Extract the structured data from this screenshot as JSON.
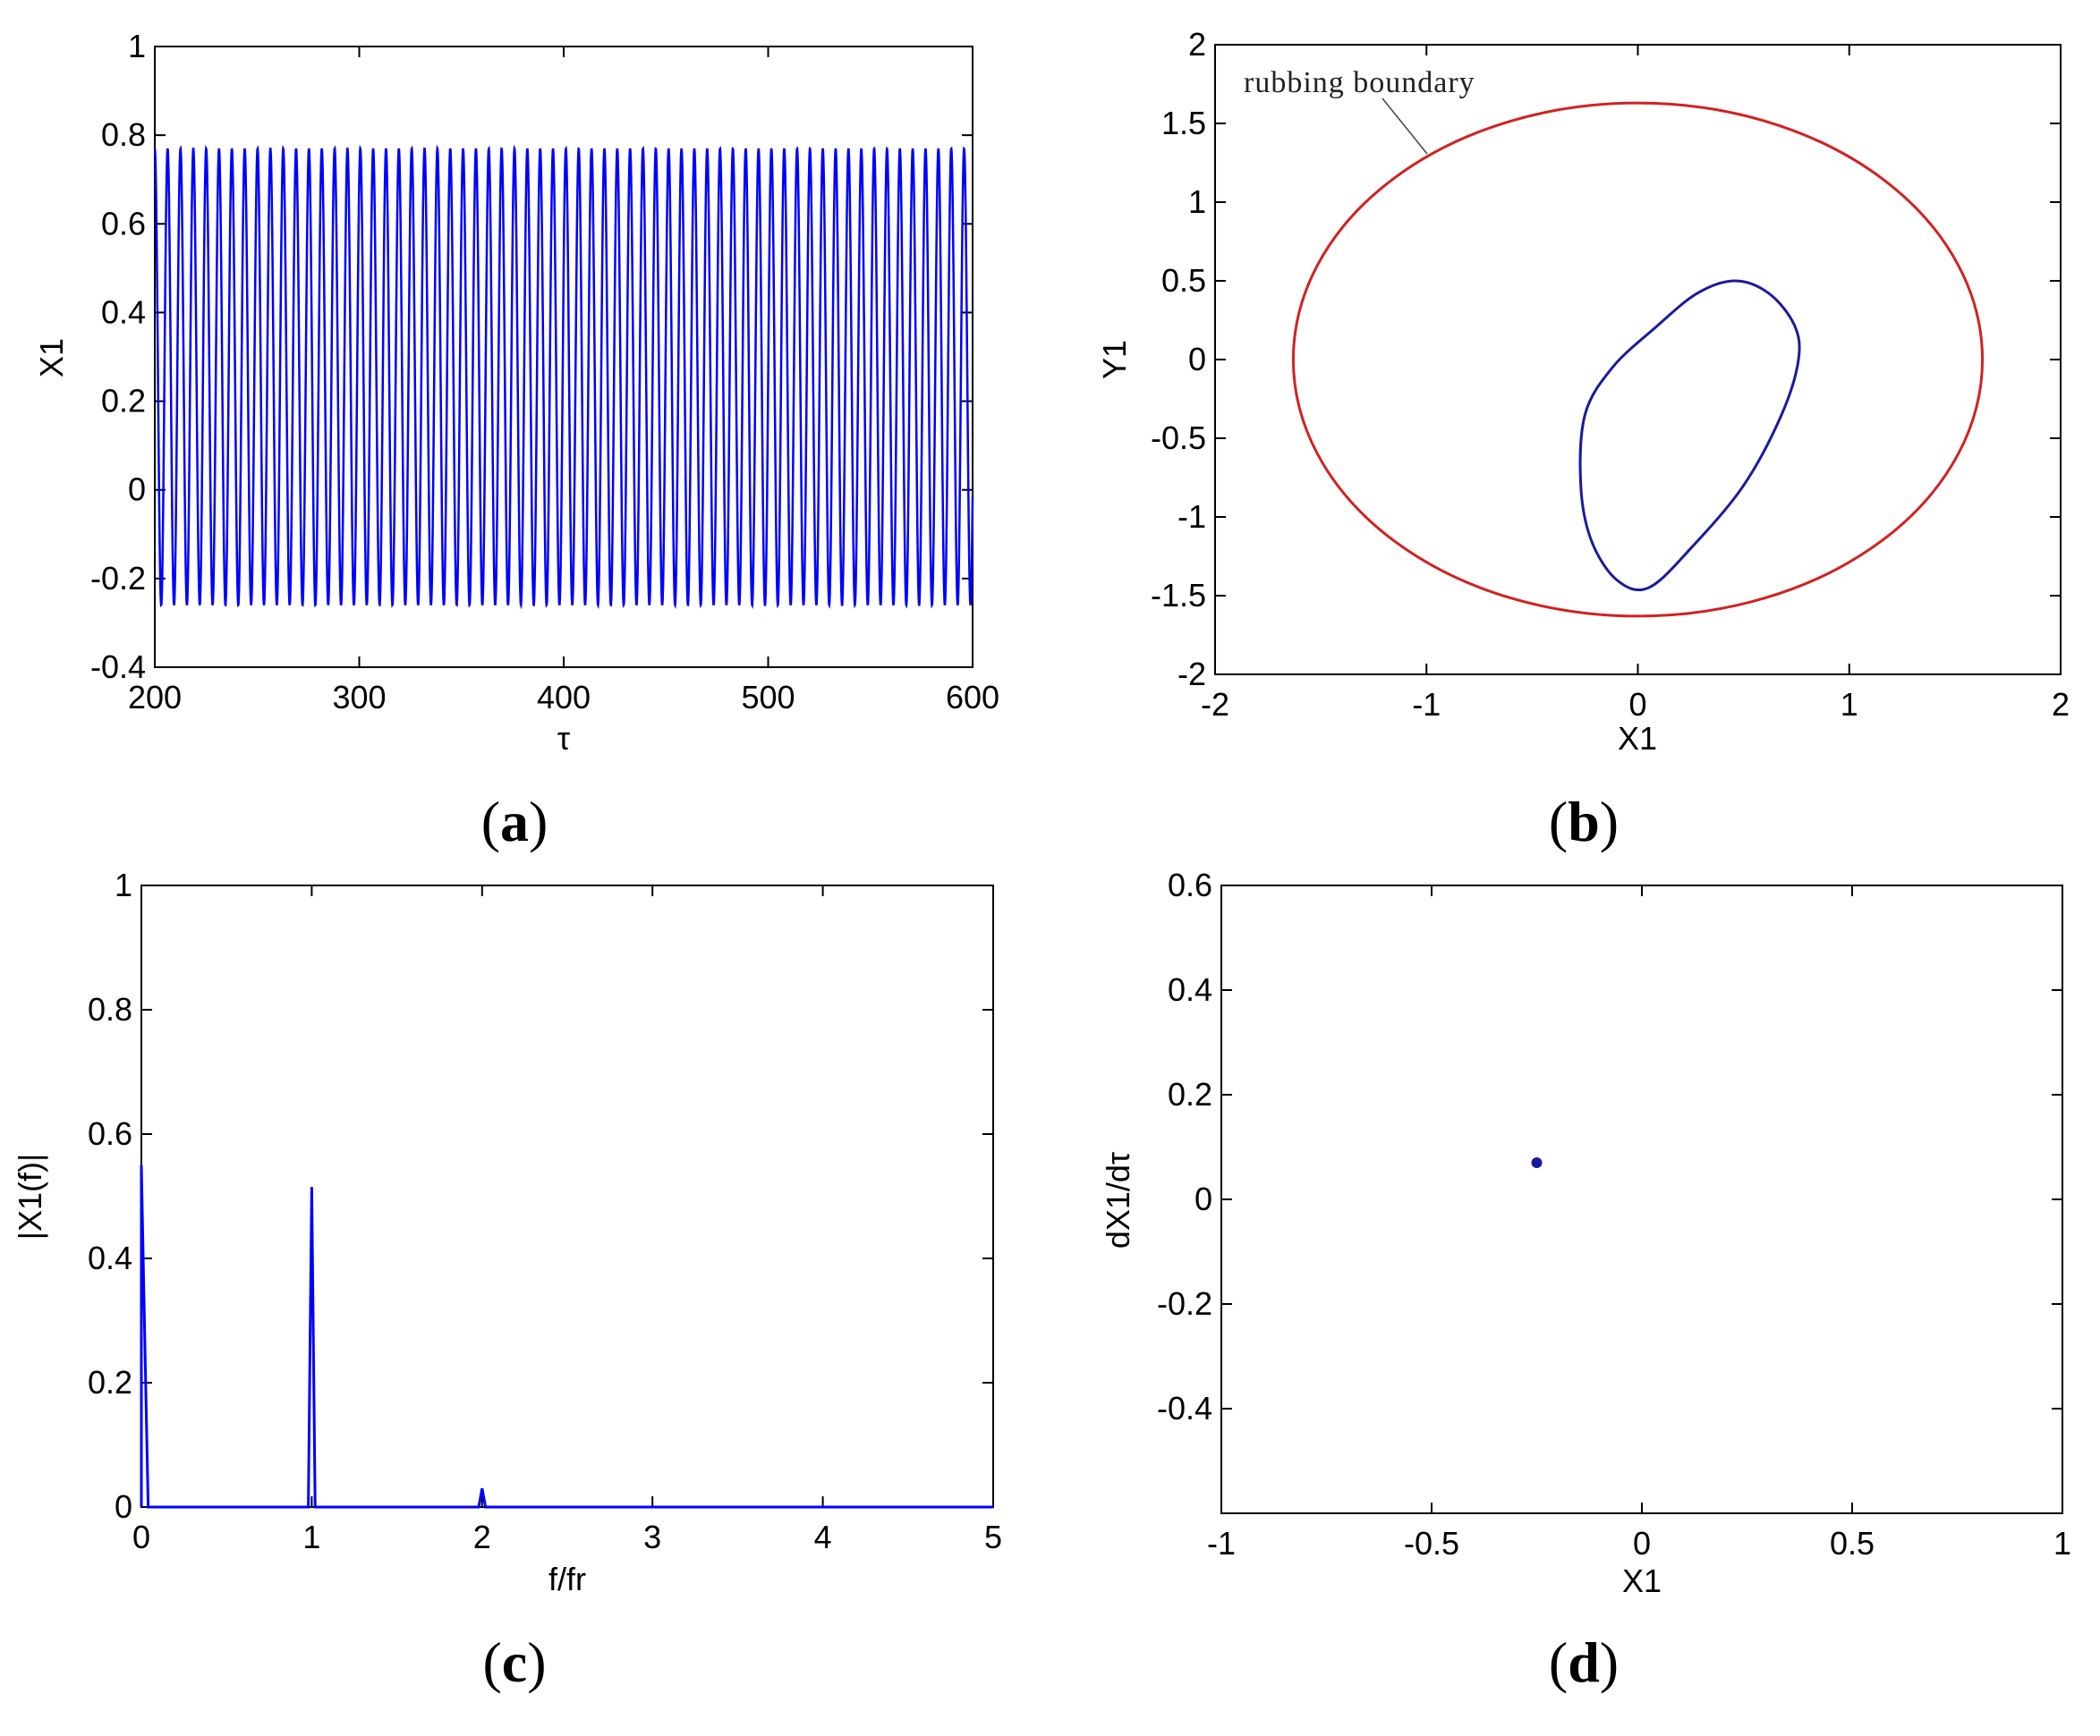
{
  "colors": {
    "series": "#0000ff",
    "orbit": "#1a1aa0",
    "boundary": "#d42020",
    "axes": "#000000"
  },
  "chart_data": [
    {
      "id": "a",
      "caption": "a",
      "type": "line",
      "xlabel": "τ",
      "ylabel": "X1",
      "xlim": [
        200,
        600
      ],
      "ylim": [
        -0.4,
        1
      ],
      "xticks": [
        "200",
        "300",
        "400",
        "500",
        "600"
      ],
      "yticks": [
        "-0.4",
        "-0.2",
        "0",
        "0.2",
        "0.4",
        "0.6",
        "0.8",
        "1"
      ],
      "series": [
        {
          "x_start": 200,
          "x_end": 600,
          "period": 6.2832,
          "max": 0.77,
          "min": -0.26
        }
      ]
    },
    {
      "id": "b",
      "caption": "b",
      "type": "line",
      "xlabel": "X1",
      "ylabel": "Y1",
      "xlim": [
        -2,
        2
      ],
      "ylim": [
        -2,
        2
      ],
      "xticks": [
        "-2",
        "-1",
        "0",
        "1",
        "2"
      ],
      "yticks": [
        "-2",
        "-1.5",
        "-1",
        "-0.5",
        "0",
        "0.5",
        "1",
        "1.5",
        "2"
      ],
      "annotation": "rubbing boundary",
      "series": [
        {
          "kind": "boundary",
          "center": [
            0,
            0
          ],
          "radius_x": 1.63,
          "radius_y": 1.63
        },
        {
          "kind": "orbit",
          "points": [
            [
              0.46,
              0.5
            ],
            [
              0.62,
              0.42
            ],
            [
              0.74,
              0.22
            ],
            [
              0.76,
              0.0
            ],
            [
              0.68,
              -0.35
            ],
            [
              0.5,
              -0.8
            ],
            [
              0.25,
              -1.2
            ],
            [
              0.05,
              -1.45
            ],
            [
              -0.1,
              -1.4
            ],
            [
              -0.22,
              -1.15
            ],
            [
              -0.27,
              -0.8
            ],
            [
              -0.25,
              -0.35
            ],
            [
              -0.12,
              -0.05
            ],
            [
              0.08,
              0.2
            ],
            [
              0.28,
              0.42
            ]
          ]
        }
      ]
    },
    {
      "id": "c",
      "caption": "c",
      "type": "line",
      "xlabel": "f/fr",
      "ylabel": "|X1(f)|",
      "xlim": [
        0,
        5
      ],
      "ylim": [
        0,
        1
      ],
      "xticks": [
        "0",
        "1",
        "2",
        "3",
        "4",
        "5"
      ],
      "yticks": [
        "0",
        "0.2",
        "0.4",
        "0.6",
        "0.8",
        "1"
      ],
      "series": [
        {
          "x": [
            0,
            0.0,
            0.02,
            0.04,
            0.98,
            1.0,
            1.02,
            1.98,
            2.0,
            2.02,
            5
          ],
          "y": [
            0,
            0.55,
            0.27,
            0,
            0,
            0.515,
            0,
            0,
            0.03,
            0,
            0
          ]
        }
      ]
    },
    {
      "id": "d",
      "caption": "d",
      "type": "scatter",
      "xlabel": "X1",
      "ylabel": "dX1/dτ",
      "xlim": [
        -1,
        1
      ],
      "ylim": [
        -0.6,
        0.6
      ],
      "xticks": [
        "-1",
        "-0.5",
        "0",
        "0.5",
        "1"
      ],
      "yticks": [
        "-0.4",
        "-0.2",
        "0",
        "0.2",
        "0.4",
        "0.6"
      ],
      "series": [
        {
          "points": [
            [
              -0.25,
              0.07
            ]
          ]
        }
      ]
    }
  ]
}
